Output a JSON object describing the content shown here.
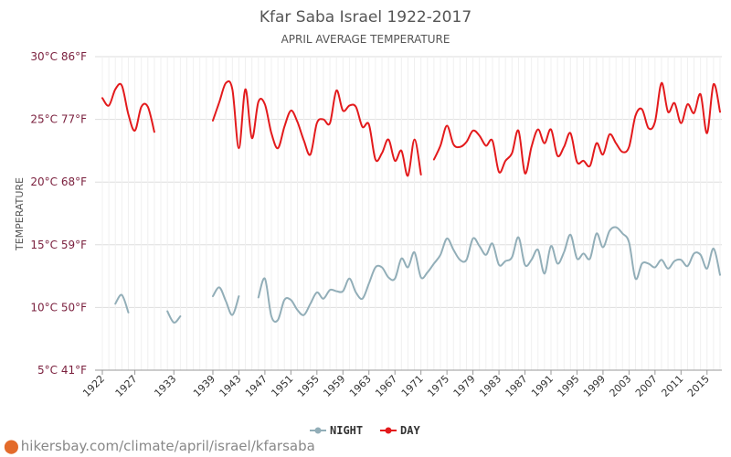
{
  "source_text": "hikersbay.com/climate/april/israel/kfarsaba",
  "source_icon": "map-pin-icon",
  "chart_data": {
    "type": "line",
    "title": "Kfar Saba Israel 1922-2017",
    "subtitle": "APRIL AVERAGE TEMPERATURE",
    "ylabel": "TEMPERATURE",
    "xlabel": "",
    "ylim": [
      5,
      30
    ],
    "xlim": [
      1922,
      2017
    ],
    "grid": true,
    "legend_position": "bottom-center",
    "y_ticks": [
      {
        "value": 30,
        "label": "30°C 86°F"
      },
      {
        "value": 25,
        "label": "25°C 77°F"
      },
      {
        "value": 20,
        "label": "20°C 68°F"
      },
      {
        "value": 15,
        "label": "15°C 59°F"
      },
      {
        "value": 10,
        "label": "10°C 50°F"
      },
      {
        "value": 5,
        "label": "5°C 41°F"
      }
    ],
    "x_ticks": [
      "1922",
      "1927",
      "1933",
      "1939",
      "1943",
      "1947",
      "1951",
      "1955",
      "1959",
      "1963",
      "1967",
      "1971",
      "1975",
      "1979",
      "1983",
      "1987",
      "1991",
      "1995",
      "1999",
      "2003",
      "2007",
      "2011",
      "2015"
    ],
    "x": [
      1922,
      1923,
      1924,
      1925,
      1926,
      1927,
      1928,
      1929,
      1930,
      1931,
      1932,
      1933,
      1934,
      1935,
      1936,
      1937,
      1938,
      1939,
      1940,
      1941,
      1942,
      1943,
      1944,
      1945,
      1946,
      1947,
      1948,
      1949,
      1950,
      1951,
      1952,
      1953,
      1954,
      1955,
      1956,
      1957,
      1958,
      1959,
      1960,
      1961,
      1962,
      1963,
      1964,
      1965,
      1966,
      1967,
      1968,
      1969,
      1970,
      1971,
      1972,
      1973,
      1974,
      1975,
      1976,
      1977,
      1978,
      1979,
      1980,
      1981,
      1982,
      1983,
      1984,
      1985,
      1986,
      1987,
      1988,
      1989,
      1990,
      1991,
      1992,
      1993,
      1994,
      1995,
      1996,
      1997,
      1998,
      1999,
      2000,
      2001,
      2002,
      2003,
      2004,
      2005,
      2006,
      2007,
      2008,
      2009,
      2010,
      2011,
      2012,
      2013,
      2014,
      2015,
      2016,
      2017
    ],
    "series": [
      {
        "name": "NIGHT",
        "color": "#92aeb8",
        "values": [
          null,
          null,
          10.3,
          11.0,
          9.6,
          null,
          null,
          null,
          null,
          null,
          9.7,
          8.8,
          9.3,
          null,
          null,
          null,
          null,
          10.9,
          11.6,
          10.5,
          9.4,
          10.9,
          null,
          null,
          10.8,
          12.3,
          9.3,
          9.0,
          10.6,
          10.6,
          9.8,
          9.4,
          10.3,
          11.2,
          10.7,
          11.4,
          11.3,
          11.3,
          12.3,
          11.2,
          10.7,
          11.9,
          13.2,
          13.2,
          12.4,
          12.3,
          13.9,
          13.2,
          14.4,
          12.4,
          12.8,
          13.5,
          14.2,
          15.5,
          14.6,
          13.8,
          13.8,
          15.5,
          14.9,
          14.2,
          15.1,
          13.4,
          13.7,
          14.0,
          15.6,
          13.4,
          13.8,
          14.6,
          12.7,
          14.9,
          13.5,
          14.4,
          15.8,
          13.9,
          14.3,
          13.9,
          15.9,
          14.8,
          16.1,
          16.4,
          15.9,
          15.2,
          12.3,
          13.5,
          13.5,
          13.2,
          13.8,
          13.1,
          13.7,
          13.8,
          13.3,
          14.3,
          14.2,
          13.1,
          14.7,
          12.6
        ]
      },
      {
        "name": "DAY",
        "color": "#e31a1c",
        "values": [
          26.7,
          26.1,
          27.4,
          27.7,
          25.4,
          24.1,
          26.0,
          26.0,
          24.0,
          null,
          null,
          null,
          null,
          null,
          null,
          null,
          null,
          24.9,
          26.4,
          27.9,
          27.4,
          22.7,
          27.4,
          23.5,
          26.4,
          26.2,
          23.9,
          22.7,
          24.4,
          25.7,
          24.8,
          23.3,
          22.2,
          24.7,
          25.0,
          24.7,
          27.3,
          25.7,
          26.1,
          26.0,
          24.4,
          24.6,
          21.8,
          22.3,
          23.4,
          21.7,
          22.5,
          20.5,
          23.4,
          20.6,
          null,
          21.8,
          22.9,
          24.5,
          23.0,
          22.8,
          23.2,
          24.1,
          23.7,
          22.9,
          23.3,
          20.8,
          21.7,
          22.3,
          24.1,
          20.7,
          22.8,
          24.2,
          23.1,
          24.2,
          22.1,
          22.8,
          23.9,
          21.6,
          21.7,
          21.3,
          23.1,
          22.2,
          23.8,
          23.1,
          22.4,
          22.8,
          25.3,
          25.8,
          24.3,
          24.8,
          27.9,
          25.6,
          26.3,
          24.7,
          26.2,
          25.5,
          27.0,
          23.9,
          27.8,
          25.6
        ]
      }
    ]
  }
}
